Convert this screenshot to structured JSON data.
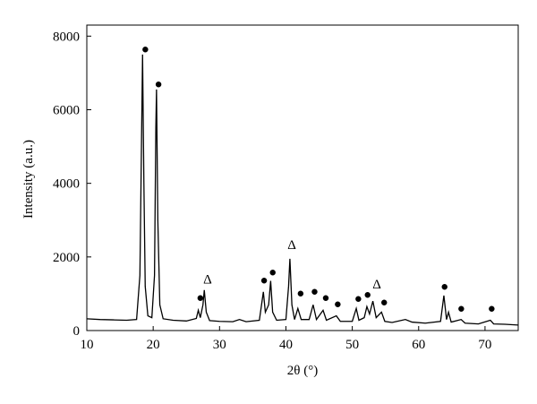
{
  "chart_data": {
    "type": "line",
    "xlabel": "2θ (°)",
    "ylabel": "Intensity (a.u.)",
    "x": [
      10,
      12,
      14,
      16,
      17.5,
      18.0,
      18.2,
      18.4,
      18.6,
      18.8,
      19.2,
      19.8,
      20.2,
      20.4,
      20.5,
      20.7,
      21.0,
      21.5,
      23,
      25,
      26.5,
      26.8,
      27.1,
      27.5,
      27.7,
      28.0,
      28.5,
      30,
      32,
      33,
      34,
      36,
      36.6,
      36.9,
      37.4,
      37.7,
      38.0,
      38.6,
      40.0,
      40.4,
      40.6,
      40.9,
      41.3,
      41.8,
      42.3,
      43.5,
      44.1,
      44.6,
      45.6,
      46.1,
      47.6,
      48.2,
      50,
      50.6,
      51.0,
      51.8,
      52.2,
      52.6,
      53.1,
      53.6,
      54.4,
      54.9,
      56,
      58,
      59,
      61,
      63.3,
      63.8,
      64.2,
      64.5,
      64.9,
      66.4,
      67,
      69,
      70.8,
      71.3,
      73,
      75
    ],
    "series": [
      {
        "color": "#000000",
        "values": [
          320,
          300,
          290,
          280,
          300,
          1500,
          4500,
          7500,
          4000,
          1200,
          400,
          350,
          1500,
          5500,
          6550,
          3000,
          700,
          320,
          280,
          260,
          330,
          550,
          350,
          700,
          1100,
          500,
          270,
          250,
          240,
          300,
          240,
          280,
          1050,
          500,
          700,
          1350,
          500,
          280,
          300,
          1200,
          1950,
          700,
          300,
          600,
          300,
          300,
          700,
          300,
          550,
          280,
          400,
          250,
          250,
          600,
          280,
          350,
          650,
          450,
          800,
          350,
          500,
          250,
          220,
          300,
          230,
          200,
          250,
          950,
          300,
          500,
          230,
          300,
          200,
          180,
          280,
          180,
          170,
          150
        ]
      }
    ],
    "xlim": [
      10,
      75
    ],
    "ylim": [
      0,
      8300
    ],
    "xticks": [
      10,
      20,
      30,
      40,
      50,
      60,
      70
    ],
    "yticks": [
      0,
      2000,
      4000,
      6000,
      8000
    ],
    "annotations": [
      {
        "text": "●",
        "x": 18.8,
        "y": 7660
      },
      {
        "text": "●",
        "x": 20.8,
        "y": 6700
      },
      {
        "text": "●",
        "x": 27.1,
        "y": 900
      },
      {
        "text": "Δ",
        "x": 28.2,
        "y": 1400
      },
      {
        "text": "●",
        "x": 36.7,
        "y": 1370
      },
      {
        "text": "●",
        "x": 38.0,
        "y": 1590
      },
      {
        "text": "Δ",
        "x": 40.9,
        "y": 2340
      },
      {
        "text": "●",
        "x": 42.2,
        "y": 1020
      },
      {
        "text": "●",
        "x": 44.3,
        "y": 1070
      },
      {
        "text": "●",
        "x": 46.0,
        "y": 900
      },
      {
        "text": "●",
        "x": 47.8,
        "y": 730
      },
      {
        "text": "●",
        "x": 50.9,
        "y": 880
      },
      {
        "text": "●",
        "x": 52.3,
        "y": 980
      },
      {
        "text": "Δ",
        "x": 53.7,
        "y": 1270
      },
      {
        "text": "●",
        "x": 54.8,
        "y": 780
      },
      {
        "text": "●",
        "x": 63.9,
        "y": 1200
      },
      {
        "text": "●",
        "x": 66.4,
        "y": 610
      },
      {
        "text": "●",
        "x": 71.0,
        "y": 610
      }
    ]
  }
}
